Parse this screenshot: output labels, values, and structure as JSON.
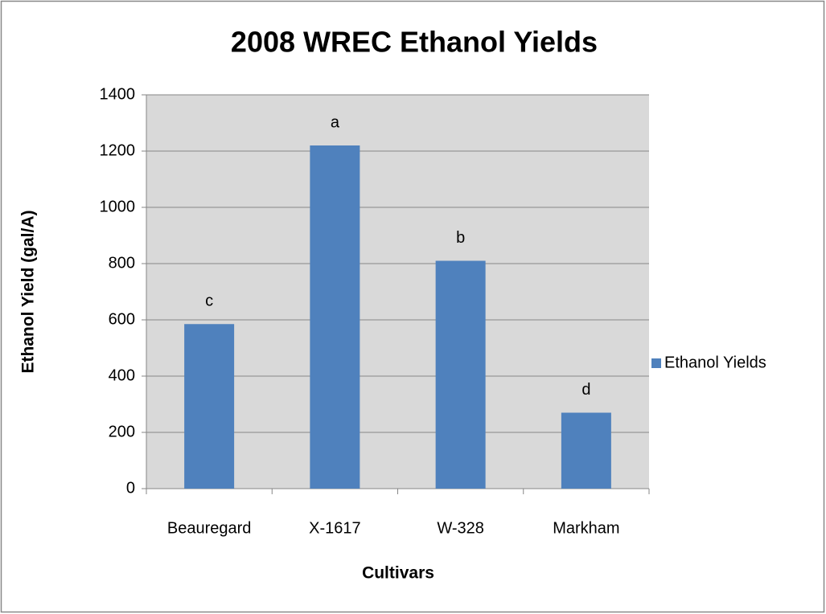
{
  "chart_data": {
    "type": "bar",
    "title": "2008 WREC Ethanol Yields",
    "x_label": "Cultivars",
    "y_label": "Ethanol Yield (gal/A)",
    "categories": [
      "Beauregard",
      "X-1617",
      "W-328",
      "Markham"
    ],
    "series": [
      {
        "name": "Ethanol Yields",
        "color": "#4f81bd",
        "values": [
          585,
          1220,
          810,
          270
        ]
      }
    ],
    "annotations": [
      "c",
      "a",
      "b",
      "d"
    ],
    "ylim": [
      0,
      1400
    ],
    "yticks": [
      0,
      200,
      400,
      600,
      800,
      1000,
      1200,
      1400
    ],
    "grid": true,
    "legend": "right"
  }
}
